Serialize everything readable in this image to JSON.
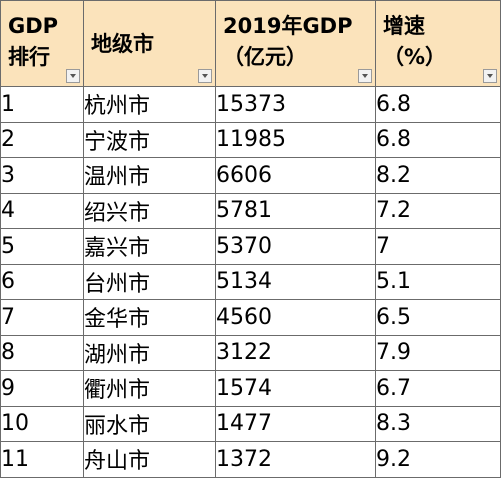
{
  "table": {
    "headers": [
      {
        "lines": [
          "GDP",
          "排行"
        ]
      },
      {
        "lines": [
          "地级市"
        ]
      },
      {
        "lines": [
          "2019年GDP",
          "（亿元）"
        ]
      },
      {
        "lines": [
          "增速",
          "（%）"
        ]
      }
    ],
    "rows": [
      [
        "1",
        "杭州市",
        "15373",
        "6.8"
      ],
      [
        "2",
        "宁波市",
        "11985",
        "6.8"
      ],
      [
        "3",
        "温州市",
        "6606",
        "8.2"
      ],
      [
        "4",
        "绍兴市",
        "5781",
        "7.2"
      ],
      [
        "5",
        "嘉兴市",
        "5370",
        "7"
      ],
      [
        "6",
        "台州市",
        "5134",
        "5.1"
      ],
      [
        "7",
        "金华市",
        "4560",
        "6.5"
      ],
      [
        "8",
        "湖州市",
        "3122",
        "7.9"
      ],
      [
        "9",
        "衢州市",
        "1574",
        "6.7"
      ],
      [
        "10",
        "丽水市",
        "1477",
        "8.3"
      ],
      [
        "11",
        "舟山市",
        "1372",
        "9.2"
      ]
    ]
  },
  "colors": {
    "header_background": "#fbe3bb",
    "grid_line": "#6b6b6b",
    "cell_background": "#ffffff"
  },
  "icons": {
    "filter_dropdown": "chevron-down-icon"
  }
}
